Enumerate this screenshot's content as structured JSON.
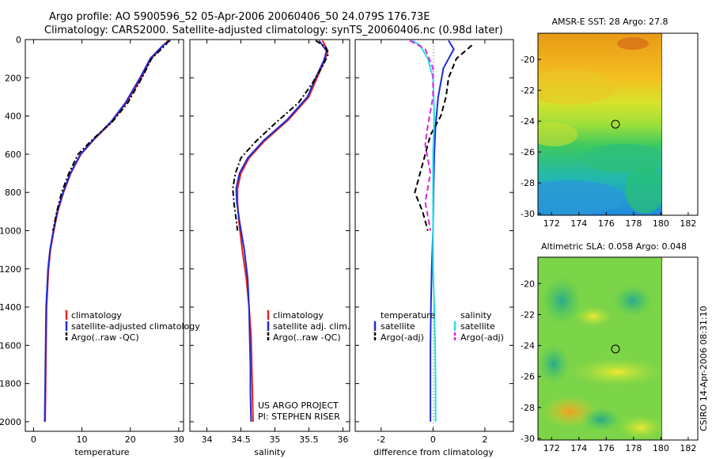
{
  "header": {
    "line1": "Argo profile: AO 5900596_52 05-Apr-2006 20060406_50 24.079S 176.73E",
    "line2": "Climatology: CARS2000. Satellite-adjusted climatology: synTS_20060406.nc (0.98d later)"
  },
  "project_note": [
    "US ARGO PROJECT",
    "PI: STEPHEN RISER"
  ],
  "side_stamp": "CSIRO 14-Apr-2006 08:31:10",
  "colors": {
    "climatology": "#e8201e",
    "satellite": "#1f2bd6",
    "argo": "#000000",
    "sal_satellite": "#22e0e8",
    "sal_argo": "#e020e0"
  },
  "chart_data": [
    {
      "type": "line",
      "xlabel": "temperature",
      "ylabel": "",
      "xlim": [
        -1.7,
        31
      ],
      "ylim": [
        2050,
        0
      ],
      "x_ticks": [
        "0",
        "10",
        "20",
        "30"
      ],
      "y_ticks": [
        "0",
        "200",
        "400",
        "600",
        "800",
        "1000",
        "1200",
        "1400",
        "1600",
        "1800",
        "2000"
      ],
      "legend": [
        "climatology",
        "satellite-adjusted climatology",
        "Argo(..raw -QC)"
      ],
      "series": [
        {
          "name": "climatology",
          "style": "solid",
          "color": "#e8201e",
          "points": [
            [
              27.8,
              5
            ],
            [
              27.2,
              20
            ],
            [
              25.8,
              60
            ],
            [
              24.3,
              100
            ],
            [
              22.3,
              200
            ],
            [
              19.2,
              330
            ],
            [
              16.2,
              430
            ],
            [
              12.6,
              520
            ],
            [
              9.8,
              600
            ],
            [
              7.7,
              700
            ],
            [
              6.2,
              800
            ],
            [
              5.0,
              900
            ],
            [
              4.2,
              1000
            ],
            [
              3.5,
              1100
            ],
            [
              3.1,
              1200
            ],
            [
              2.9,
              1300
            ],
            [
              2.7,
              1400
            ],
            [
              2.6,
              1600
            ],
            [
              2.5,
              1800
            ],
            [
              2.4,
              2000
            ]
          ]
        },
        {
          "name": "satellite-adjusted climatology",
          "style": "solid",
          "color": "#1f2bd6",
          "points": [
            [
              28.3,
              5
            ],
            [
              27.0,
              25
            ],
            [
              25.6,
              60
            ],
            [
              24.1,
              100
            ],
            [
              22.0,
              200
            ],
            [
              19.0,
              330
            ],
            [
              16.0,
              430
            ],
            [
              12.5,
              520
            ],
            [
              9.7,
              600
            ],
            [
              7.6,
              700
            ],
            [
              6.1,
              800
            ],
            [
              4.9,
              900
            ],
            [
              4.1,
              1000
            ],
            [
              3.4,
              1100
            ],
            [
              3.0,
              1200
            ],
            [
              2.8,
              1300
            ],
            [
              2.6,
              1400
            ],
            [
              2.5,
              1600
            ],
            [
              2.4,
              1800
            ],
            [
              2.3,
              2000
            ]
          ]
        },
        {
          "name": "Argo(..raw -QC)",
          "style": "dashdot",
          "color": "#000000",
          "points": [
            [
              28.0,
              5
            ],
            [
              27.4,
              25
            ],
            [
              26.0,
              60
            ],
            [
              24.4,
              100
            ],
            [
              22.4,
              200
            ],
            [
              19.5,
              330
            ],
            [
              16.3,
              430
            ],
            [
              12.3,
              520
            ],
            [
              9.2,
              600
            ],
            [
              7.3,
              700
            ],
            [
              5.8,
              800
            ],
            [
              4.8,
              900
            ],
            [
              4.0,
              1000
            ]
          ]
        }
      ]
    },
    {
      "type": "line",
      "xlabel": "salinity",
      "ylabel": "",
      "xlim": [
        33.75,
        36.1
      ],
      "ylim": [
        2050,
        0
      ],
      "x_ticks": [
        "34",
        "34.5",
        "35",
        "35.5",
        "36"
      ],
      "legend": [
        "climatology",
        "satellite adj. clim.",
        "Argo(..raw -QC)"
      ],
      "series": [
        {
          "name": "climatology",
          "style": "solid",
          "color": "#e8201e",
          "points": [
            [
              35.7,
              5
            ],
            [
              35.78,
              60
            ],
            [
              35.72,
              120
            ],
            [
              35.62,
              200
            ],
            [
              35.5,
              300
            ],
            [
              35.2,
              420
            ],
            [
              34.85,
              530
            ],
            [
              34.62,
              620
            ],
            [
              34.5,
              700
            ],
            [
              34.45,
              780
            ],
            [
              34.45,
              850
            ],
            [
              34.47,
              950
            ],
            [
              34.52,
              1100
            ],
            [
              34.58,
              1250
            ],
            [
              34.62,
              1400
            ],
            [
              34.65,
              1550
            ],
            [
              34.66,
              1700
            ],
            [
              34.67,
              1850
            ],
            [
              34.68,
              2000
            ]
          ]
        },
        {
          "name": "satellite adj. clim.",
          "style": "solid",
          "color": "#1f2bd6",
          "points": [
            [
              35.65,
              5
            ],
            [
              35.76,
              60
            ],
            [
              35.72,
              110
            ],
            [
              35.6,
              200
            ],
            [
              35.48,
              300
            ],
            [
              35.18,
              420
            ],
            [
              34.83,
              530
            ],
            [
              34.6,
              620
            ],
            [
              34.48,
              700
            ],
            [
              34.43,
              780
            ],
            [
              34.44,
              850
            ],
            [
              34.48,
              950
            ],
            [
              34.55,
              1100
            ],
            [
              34.6,
              1250
            ],
            [
              34.62,
              1400
            ],
            [
              34.63,
              1550
            ],
            [
              34.64,
              1700
            ],
            [
              34.64,
              1850
            ],
            [
              34.65,
              2000
            ]
          ]
        },
        {
          "name": "Argo(..raw -QC)",
          "style": "dashdot",
          "color": "#000000",
          "points": [
            [
              35.6,
              5
            ],
            [
              35.75,
              40
            ],
            [
              35.78,
              80
            ],
            [
              35.7,
              140
            ],
            [
              35.55,
              230
            ],
            [
              35.35,
              330
            ],
            [
              35.0,
              440
            ],
            [
              34.7,
              540
            ],
            [
              34.5,
              620
            ],
            [
              34.42,
              700
            ],
            [
              34.38,
              780
            ],
            [
              34.4,
              860
            ],
            [
              34.43,
              940
            ],
            [
              34.45,
              1000
            ]
          ]
        }
      ]
    },
    {
      "type": "line",
      "xlabel": "difference from climatology",
      "ylabel": "",
      "xlim": [
        -3,
        3.1
      ],
      "ylim": [
        2050,
        0
      ],
      "x_ticks": [
        "-2",
        "0",
        "2"
      ],
      "legend_temperature_title": "temperature",
      "legend_salinity_title": "salinity",
      "legend": [
        "satellite",
        "Argo(-adj)",
        "satellite",
        "Argo(-adj)"
      ],
      "series": [
        {
          "name": "satellite",
          "group": "temperature",
          "style": "solid",
          "color": "#1f2bd6",
          "points": [
            [
              0.6,
              5
            ],
            [
              0.8,
              50
            ],
            [
              0.4,
              150
            ],
            [
              0.2,
              300
            ],
            [
              0.1,
              450
            ],
            [
              0.05,
              600
            ],
            [
              0.02,
              800
            ],
            [
              0.0,
              1000
            ],
            [
              -0.05,
              1200
            ],
            [
              -0.08,
              1400
            ],
            [
              -0.1,
              1600
            ],
            [
              -0.1,
              1800
            ],
            [
              -0.1,
              2000
            ]
          ]
        },
        {
          "name": "Argo(-adj)",
          "group": "temperature",
          "style": "dash",
          "color": "#000000",
          "points": [
            [
              1.5,
              30
            ],
            [
              0.9,
              100
            ],
            [
              0.6,
              200
            ],
            [
              0.5,
              300
            ],
            [
              0.3,
              400
            ],
            [
              -0.1,
              500
            ],
            [
              -0.3,
              600
            ],
            [
              -0.5,
              700
            ],
            [
              -0.7,
              800
            ],
            [
              -0.4,
              900
            ],
            [
              -0.2,
              1000
            ]
          ]
        },
        {
          "name": "satellite",
          "group": "salinity",
          "style": "solid",
          "color": "#22e0e8",
          "points": [
            [
              -0.8,
              5
            ],
            [
              -0.5,
              30
            ],
            [
              -0.2,
              100
            ],
            [
              0.0,
              200
            ],
            [
              0.05,
              400
            ],
            [
              0.0,
              600
            ],
            [
              0.0,
              800
            ],
            [
              0.0,
              1000
            ],
            [
              0.0,
              1200
            ],
            [
              0.05,
              1400
            ],
            [
              0.08,
              1600
            ],
            [
              0.1,
              1800
            ],
            [
              0.1,
              2000
            ]
          ]
        },
        {
          "name": "Argo(-adj)",
          "group": "salinity",
          "style": "dash",
          "color": "#e020e0",
          "points": [
            [
              -0.9,
              5
            ],
            [
              -0.3,
              50
            ],
            [
              0.0,
              150
            ],
            [
              0.0,
              300
            ],
            [
              -0.2,
              450
            ],
            [
              -0.3,
              550
            ],
            [
              -0.1,
              700
            ],
            [
              -0.3,
              850
            ],
            [
              -0.1,
              1000
            ]
          ]
        }
      ]
    }
  ],
  "maps": [
    {
      "title": "AMSR-E SST: 28 Argo: 27.8",
      "x_ticks": [
        "172",
        "174",
        "176",
        "178",
        "180",
        "182"
      ],
      "y_ticks": [
        "-20",
        "-22",
        "-24",
        "-26",
        "-28",
        "-30"
      ]
    },
    {
      "title": "Altimetric SLA: 0.058 Argo: 0.048",
      "x_ticks": [
        "172",
        "174",
        "176",
        "178",
        "180",
        "182"
      ],
      "y_ticks": [
        "-20",
        "-22",
        "-24",
        "-26",
        "-28",
        "-30"
      ]
    }
  ]
}
